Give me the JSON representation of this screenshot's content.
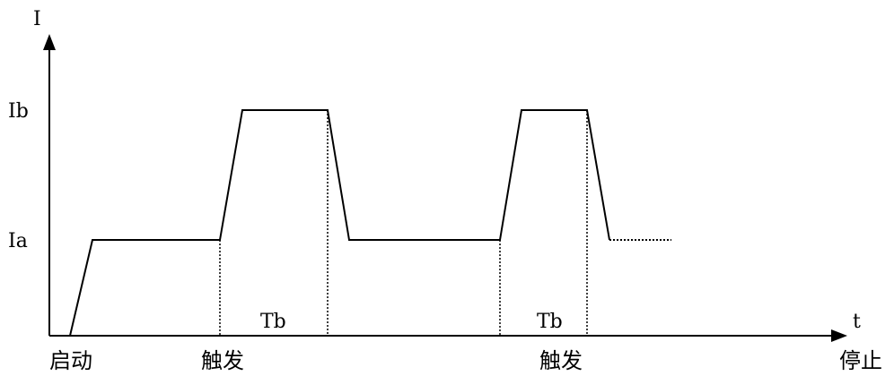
{
  "diagram": {
    "y_axis_label": "I",
    "x_axis_label": "t",
    "levels": {
      "high": "Ib",
      "low": "Ia"
    },
    "interval_labels": [
      "Tb",
      "Tb"
    ],
    "events": {
      "start": "启动",
      "trigger_1": "触发",
      "trigger_2": "触发",
      "stop": "停止"
    },
    "colors": {
      "line": "#000000",
      "background": "#ffffff"
    }
  }
}
